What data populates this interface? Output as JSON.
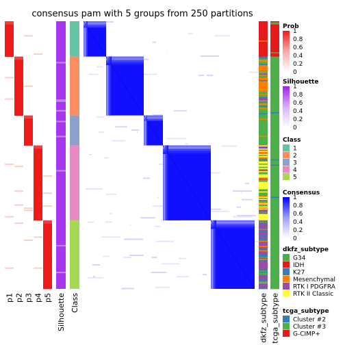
{
  "chart_data": {
    "type": "heatmap",
    "title": "consensus pam with 5 groups from 250 partitions",
    "n_samples": 250,
    "class_order": [
      1,
      2,
      3,
      4,
      5
    ],
    "class_sizes": [
      33,
      55,
      28,
      70,
      64
    ],
    "prob_columns": [
      "p1",
      "p2",
      "p3",
      "p4",
      "p5"
    ],
    "annotation_columns": [
      "Silhouette",
      "Class"
    ],
    "right_annotation_columns": [
      "dkfz_subtype",
      "tcga_subtype"
    ],
    "class_colors": {
      "1": "#66C2A5",
      "2": "#FC8D62",
      "3": "#8DA0CB",
      "4": "#E78AC3",
      "5": "#A6D854"
    },
    "consensus_color": "#0000FF",
    "prob_color": "#EE0000",
    "silhouette_color": "#A020F0",
    "legends": [
      {
        "title": "Prob",
        "type": "continuous",
        "labels": [
          "1",
          "0.8",
          "0.6",
          "0.4",
          "0.2",
          "0"
        ],
        "colors": [
          "#EE1B1B",
          "#F7A9A9",
          "#FFFFFF"
        ]
      },
      {
        "title": "Silhouette",
        "type": "continuous",
        "labels": [
          "1",
          "0.8",
          "0.6",
          "0.4",
          "0.2",
          "0"
        ],
        "colors": [
          "#A020F0",
          "#D8B0F8",
          "#FFFFFF"
        ]
      },
      {
        "title": "Class",
        "type": "discrete",
        "labels": [
          "1",
          "2",
          "3",
          "4",
          "5"
        ],
        "colors": [
          "#66C2A5",
          "#FC8D62",
          "#8DA0CB",
          "#E78AC3",
          "#A6D854"
        ]
      },
      {
        "title": "Consensus",
        "type": "continuous",
        "labels": [
          "1",
          "0.8",
          "0.6",
          "0.4",
          "0.2",
          "0"
        ],
        "colors": [
          "#0000FF",
          "#A0A0FF",
          "#FFFFFF"
        ]
      },
      {
        "title": "dkfz_subtype",
        "type": "discrete",
        "labels": [
          "G34",
          "IDH",
          "K27",
          "Mesenchymal",
          "RTK I PDGFRA",
          "RTK II Classic"
        ],
        "colors": [
          "#4DAF4A",
          "#E41A1C",
          "#377EB8",
          "#FF7F00",
          "#984EA3",
          "#FFFF33"
        ]
      },
      {
        "title": "tcga_subtype",
        "type": "discrete",
        "labels": [
          "Cluster #2",
          "Cluster #3",
          "G-CIMP+"
        ],
        "colors": [
          "#377EB8",
          "#4DAF4A",
          "#E41A1C"
        ]
      }
    ]
  }
}
